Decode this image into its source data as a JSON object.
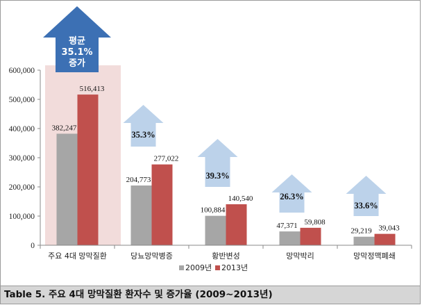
{
  "chart_data": {
    "type": "bar",
    "categories": [
      "주요 4대  망막질환",
      "당뇨망막병증",
      "황반변성",
      "망막박리",
      "망막정맥폐쇄"
    ],
    "series": [
      {
        "name": "2009년",
        "values": [
          382247,
          204773,
          100884,
          47371,
          29219
        ],
        "labels": [
          "382,247",
          "204,773",
          "100,884",
          "47,371",
          "29,219"
        ],
        "color": "#a6a6a6"
      },
      {
        "name": "2013년",
        "values": [
          516413,
          277022,
          140540,
          59808,
          39043
        ],
        "labels": [
          "516,413",
          "277,022",
          "140,540",
          "59,808",
          "39,043"
        ],
        "color": "#c0504d"
      }
    ],
    "ylim": [
      0,
      600000
    ],
    "yticks": [
      0,
      100000,
      200000,
      300000,
      400000,
      500000,
      600000
    ],
    "ytick_labels": [
      "0",
      "100,000",
      "200,000",
      "300,000",
      "400,000",
      "500,000",
      "600,000"
    ],
    "growth_labels": [
      "35.3%",
      "39.3%",
      "26.3%",
      "33.6%"
    ],
    "highlight": {
      "label_lines": [
        "평균",
        "35.1%",
        "증가"
      ],
      "arrow_color": "#3c70b4",
      "panel_color": "#f2dcdb"
    },
    "growth_arrow_color": "#bcd2ea",
    "legend_position": "bottom-right",
    "grid": false
  },
  "caption": "Table 5. 주요 4대 망막질환 환자수 및 증가율 (2009~2013년)"
}
